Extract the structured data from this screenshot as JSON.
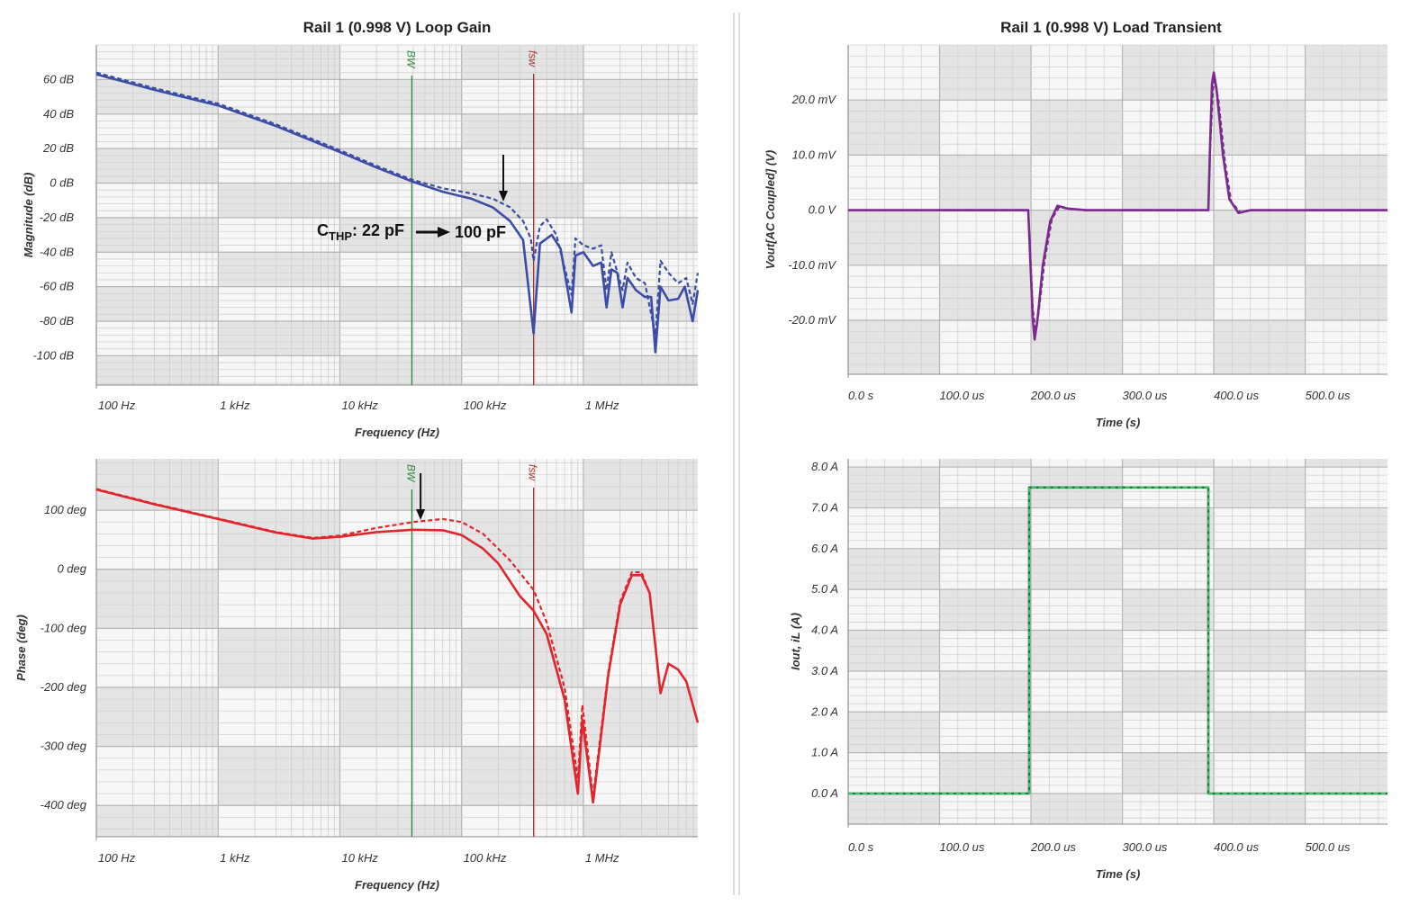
{
  "chart_data": [
    {
      "id": "magnitude",
      "type": "line",
      "title": "Rail 1 (0.998 V) Loop Gain",
      "xlabel": "Frequency (Hz)",
      "ylabel": "Magnitude (dB)",
      "xscale": "log",
      "xlim": [
        100,
        8700000
      ],
      "ylim": [
        -117,
        80
      ],
      "xticks": [
        {
          "v": 100,
          "label": "100 Hz"
        },
        {
          "v": 1000,
          "label": "1 kHz"
        },
        {
          "v": 10000,
          "label": "10 kHz"
        },
        {
          "v": 100000,
          "label": "100 kHz"
        },
        {
          "v": 1000000,
          "label": "1 MHz"
        }
      ],
      "yticks": [
        {
          "v": 60,
          "label": "60 dB"
        },
        {
          "v": 40,
          "label": "40 dB"
        },
        {
          "v": 20,
          "label": "20 dB"
        },
        {
          "v": 0,
          "label": "0 dB"
        },
        {
          "v": -20,
          "label": "-20 dB"
        },
        {
          "v": -40,
          "label": "-40 dB"
        },
        {
          "v": -60,
          "label": "-60 dB"
        },
        {
          "v": -80,
          "label": "-80 dB"
        },
        {
          "v": -100,
          "label": "-100 dB"
        }
      ],
      "grid": true,
      "markers": [
        {
          "label": "BW",
          "x": 39000,
          "color": "#2e8b3a"
        },
        {
          "label": "fsw",
          "x": 390000,
          "color": "#a83232"
        }
      ],
      "annotation": {
        "c": "C",
        "sub": "THP",
        "from": ": 22 pF",
        "to": "100 pF",
        "arrow_x": 220000
      },
      "series": [
        {
          "name": "CTHP 22 pF",
          "style": "solid",
          "color": "#3a4ea8",
          "points": [
            [
              100,
              63
            ],
            [
              300,
              54
            ],
            [
              1000,
              45
            ],
            [
              3000,
              33
            ],
            [
              10000,
              18
            ],
            [
              20000,
              9
            ],
            [
              39000,
              1
            ],
            [
              70000,
              -5
            ],
            [
              120000,
              -9
            ],
            [
              180000,
              -14
            ],
            [
              250000,
              -22
            ],
            [
              320000,
              -33
            ],
            [
              390000,
              -87
            ],
            [
              440000,
              -35
            ],
            [
              550000,
              -30
            ],
            [
              650000,
              -38
            ],
            [
              800000,
              -75
            ],
            [
              860000,
              -42
            ],
            [
              1000000,
              -40
            ],
            [
              1200000,
              -48
            ],
            [
              1400000,
              -46
            ],
            [
              1550000,
              -72
            ],
            [
              1700000,
              -50
            ],
            [
              1900000,
              -52
            ],
            [
              2100000,
              -72
            ],
            [
              2300000,
              -55
            ],
            [
              2700000,
              -62
            ],
            [
              3200000,
              -66
            ],
            [
              3600000,
              -66
            ],
            [
              3900000,
              -98
            ],
            [
              4300000,
              -60
            ],
            [
              5000000,
              -68
            ],
            [
              6000000,
              -67
            ],
            [
              6800000,
              -60
            ],
            [
              7900000,
              -80
            ],
            [
              8700000,
              -62
            ]
          ]
        },
        {
          "name": "CTHP 100 pF",
          "style": "dashed",
          "color": "#3a4ea8",
          "points": [
            [
              100,
              64
            ],
            [
              300,
              55
            ],
            [
              1000,
              46
            ],
            [
              3000,
              34
            ],
            [
              10000,
              19
            ],
            [
              20000,
              10
            ],
            [
              39000,
              2
            ],
            [
              70000,
              -3
            ],
            [
              120000,
              -6
            ],
            [
              180000,
              -9
            ],
            [
              250000,
              -14
            ],
            [
              320000,
              -22
            ],
            [
              370000,
              -32
            ],
            [
              390000,
              -45
            ],
            [
              440000,
              -25
            ],
            [
              500000,
              -21
            ],
            [
              600000,
              -30
            ],
            [
              800000,
              -65
            ],
            [
              860000,
              -32
            ],
            [
              1000000,
              -36
            ],
            [
              1200000,
              -38
            ],
            [
              1400000,
              -36
            ],
            [
              1550000,
              -62
            ],
            [
              1700000,
              -40
            ],
            [
              2100000,
              -62
            ],
            [
              2300000,
              -46
            ],
            [
              2700000,
              -55
            ],
            [
              3200000,
              -58
            ],
            [
              3900000,
              -88
            ],
            [
              4300000,
              -45
            ],
            [
              5000000,
              -52
            ],
            [
              6000000,
              -58
            ],
            [
              7000000,
              -55
            ],
            [
              7900000,
              -70
            ],
            [
              8700000,
              -52
            ]
          ]
        }
      ]
    },
    {
      "id": "phase",
      "type": "line",
      "title": "",
      "xlabel": "Frequency (Hz)",
      "ylabel": "Phase (deg)",
      "xscale": "log",
      "xlim": [
        100,
        8700000
      ],
      "ylim": [
        -453,
        187
      ],
      "xticks": [
        {
          "v": 100,
          "label": "100 Hz"
        },
        {
          "v": 1000,
          "label": "1 kHz"
        },
        {
          "v": 10000,
          "label": "10 kHz"
        },
        {
          "v": 100000,
          "label": "100 kHz"
        },
        {
          "v": 1000000,
          "label": "1 MHz"
        }
      ],
      "yticks": [
        {
          "v": 100,
          "label": "100 deg"
        },
        {
          "v": 0,
          "label": "0 deg"
        },
        {
          "v": -100,
          "label": "-100 deg"
        },
        {
          "v": -200,
          "label": "-200 deg"
        },
        {
          "v": -300,
          "label": "-300 deg"
        },
        {
          "v": -400,
          "label": "-400 deg"
        }
      ],
      "grid": true,
      "markers": [
        {
          "label": "BW",
          "x": 39000,
          "color": "#2e8b3a"
        },
        {
          "label": "fsw",
          "x": 390000,
          "color": "#a83232"
        }
      ],
      "arrow_x": 46000,
      "series": [
        {
          "name": "CTHP 22 pF",
          "style": "solid",
          "color": "#e0262b",
          "points": [
            [
              100,
              135
            ],
            [
              300,
              110
            ],
            [
              1000,
              85
            ],
            [
              3000,
              62
            ],
            [
              6000,
              52
            ],
            [
              10000,
              55
            ],
            [
              20000,
              63
            ],
            [
              40000,
              67
            ],
            [
              70000,
              66
            ],
            [
              100000,
              58
            ],
            [
              150000,
              35
            ],
            [
              200000,
              10
            ],
            [
              300000,
              -45
            ],
            [
              390000,
              -70
            ],
            [
              500000,
              -110
            ],
            [
              700000,
              -220
            ],
            [
              900000,
              -380
            ],
            [
              980000,
              -255
            ],
            [
              1200000,
              -395
            ],
            [
              1600000,
              -180
            ],
            [
              2000000,
              -60
            ],
            [
              2500000,
              -10
            ],
            [
              3000000,
              -10
            ],
            [
              3500000,
              -40
            ],
            [
              4300000,
              -210
            ],
            [
              5000000,
              -160
            ],
            [
              6000000,
              -170
            ],
            [
              7000000,
              -190
            ],
            [
              8700000,
              -260
            ]
          ]
        },
        {
          "name": "CTHP 100 pF",
          "style": "dashed",
          "color": "#e0262b",
          "points": [
            [
              100,
              136
            ],
            [
              300,
              111
            ],
            [
              1000,
              86
            ],
            [
              3000,
              63
            ],
            [
              6000,
              53
            ],
            [
              10000,
              57
            ],
            [
              20000,
              70
            ],
            [
              40000,
              80
            ],
            [
              70000,
              85
            ],
            [
              100000,
              80
            ],
            [
              150000,
              60
            ],
            [
              250000,
              15
            ],
            [
              390000,
              -35
            ],
            [
              500000,
              -90
            ],
            [
              700000,
              -200
            ],
            [
              900000,
              -355
            ],
            [
              980000,
              -230
            ],
            [
              1200000,
              -385
            ],
            [
              1600000,
              -175
            ],
            [
              2000000,
              -55
            ],
            [
              2500000,
              -5
            ],
            [
              3000000,
              -5
            ],
            [
              3500000,
              -40
            ],
            [
              4300000,
              -210
            ],
            [
              5000000,
              -160
            ],
            [
              6000000,
              -170
            ],
            [
              7000000,
              -190
            ],
            [
              8700000,
              -260
            ]
          ]
        }
      ]
    },
    {
      "id": "vout",
      "type": "line",
      "title": "Rail 1 (0.998 V) Load Transient",
      "xlabel": "Time (s)",
      "ylabel": "Vout[AC Coupled] (V)",
      "xscale": "linear",
      "xlim": [
        0,
        590
      ],
      "xunit": "us",
      "ylim": [
        -29.8,
        30
      ],
      "yunit": "mV",
      "xticks": [
        {
          "v": 0,
          "label": "0.0 s"
        },
        {
          "v": 100,
          "label": "100.0 us"
        },
        {
          "v": 200,
          "label": "200.0 us"
        },
        {
          "v": 300,
          "label": "300.0 us"
        },
        {
          "v": 400,
          "label": "400.0 us"
        },
        {
          "v": 500,
          "label": "500.0 us"
        }
      ],
      "yticks": [
        {
          "v": 20,
          "label": "20.0 mV"
        },
        {
          "v": 10,
          "label": "10.0 mV"
        },
        {
          "v": 0,
          "label": "0.0 V"
        },
        {
          "v": -10,
          "label": "-10.0 mV"
        },
        {
          "v": -20,
          "label": "-20.0 mV"
        }
      ],
      "grid": true,
      "series": [
        {
          "name": "CTHP 22 pF",
          "style": "solid",
          "color": "#7b2a8e",
          "points": [
            [
              0,
              0
            ],
            [
              197,
              0
            ],
            [
              199,
              -8
            ],
            [
              202,
              -20
            ],
            [
              204,
              -23.5
            ],
            [
              207,
              -20
            ],
            [
              213,
              -10
            ],
            [
              221,
              -2
            ],
            [
              229,
              0.8
            ],
            [
              240,
              0.3
            ],
            [
              260,
              0
            ],
            [
              394,
              0
            ],
            [
              396,
              12
            ],
            [
              398,
              23
            ],
            [
              400,
              25
            ],
            [
              403,
              22
            ],
            [
              410,
              10
            ],
            [
              417,
              2
            ],
            [
              427,
              -0.5
            ],
            [
              440,
              0
            ],
            [
              590,
              0
            ]
          ]
        },
        {
          "name": "CTHP 100 pF",
          "style": "dashed",
          "color": "#7b2a8e",
          "points": [
            [
              0,
              0
            ],
            [
              197,
              0
            ],
            [
              199,
              -7
            ],
            [
              202,
              -18
            ],
            [
              205,
              -22
            ],
            [
              208,
              -19
            ],
            [
              215,
              -9
            ],
            [
              223,
              -1.5
            ],
            [
              231,
              0.6
            ],
            [
              242,
              0.2
            ],
            [
              260,
              0
            ],
            [
              394,
              0
            ],
            [
              396,
              11
            ],
            [
              399,
              22
            ],
            [
              401,
              23.5
            ],
            [
              405,
              20
            ],
            [
              412,
              9
            ],
            [
              419,
              1.5
            ],
            [
              429,
              -0.4
            ],
            [
              440,
              0
            ],
            [
              590,
              0
            ]
          ]
        }
      ]
    },
    {
      "id": "iout",
      "type": "line",
      "title": "",
      "xlabel": "Time (s)",
      "ylabel": "Iout, iL (A)",
      "xscale": "linear",
      "xlim": [
        0,
        590
      ],
      "xunit": "us",
      "ylim": [
        -0.75,
        8.2
      ],
      "yunit": "A",
      "xticks": [
        {
          "v": 0,
          "label": "0.0 s"
        },
        {
          "v": 100,
          "label": "100.0 us"
        },
        {
          "v": 200,
          "label": "200.0 us"
        },
        {
          "v": 300,
          "label": "300.0 us"
        },
        {
          "v": 400,
          "label": "400.0 us"
        },
        {
          "v": 500,
          "label": "500.0 us"
        }
      ],
      "yticks": [
        {
          "v": 8,
          "label": "8.0 A"
        },
        {
          "v": 7,
          "label": "7.0 A"
        },
        {
          "v": 6,
          "label": "6.0 A"
        },
        {
          "v": 5,
          "label": "5.0 A"
        },
        {
          "v": 4,
          "label": "4.0 A"
        },
        {
          "v": 3,
          "label": "3.0 A"
        },
        {
          "v": 2,
          "label": "2.0 A"
        },
        {
          "v": 1,
          "label": "1.0 A"
        },
        {
          "v": 0,
          "label": "0.0 A"
        }
      ],
      "grid": true,
      "series": [
        {
          "name": "Iout",
          "style": "solid",
          "color": "#1e7a3c",
          "points": [
            [
              0,
              0
            ],
            [
              198,
              0
            ],
            [
              198,
              7.5
            ],
            [
              394,
              7.5
            ],
            [
              394,
              0
            ],
            [
              590,
              0
            ]
          ]
        },
        {
          "name": "iL",
          "style": "dashed",
          "color": "#3fbf6a",
          "points": [
            [
              0,
              0
            ],
            [
              198,
              0
            ],
            [
              198,
              7.5
            ],
            [
              394,
              7.5
            ],
            [
              394,
              0
            ],
            [
              590,
              0
            ]
          ]
        }
      ]
    }
  ]
}
